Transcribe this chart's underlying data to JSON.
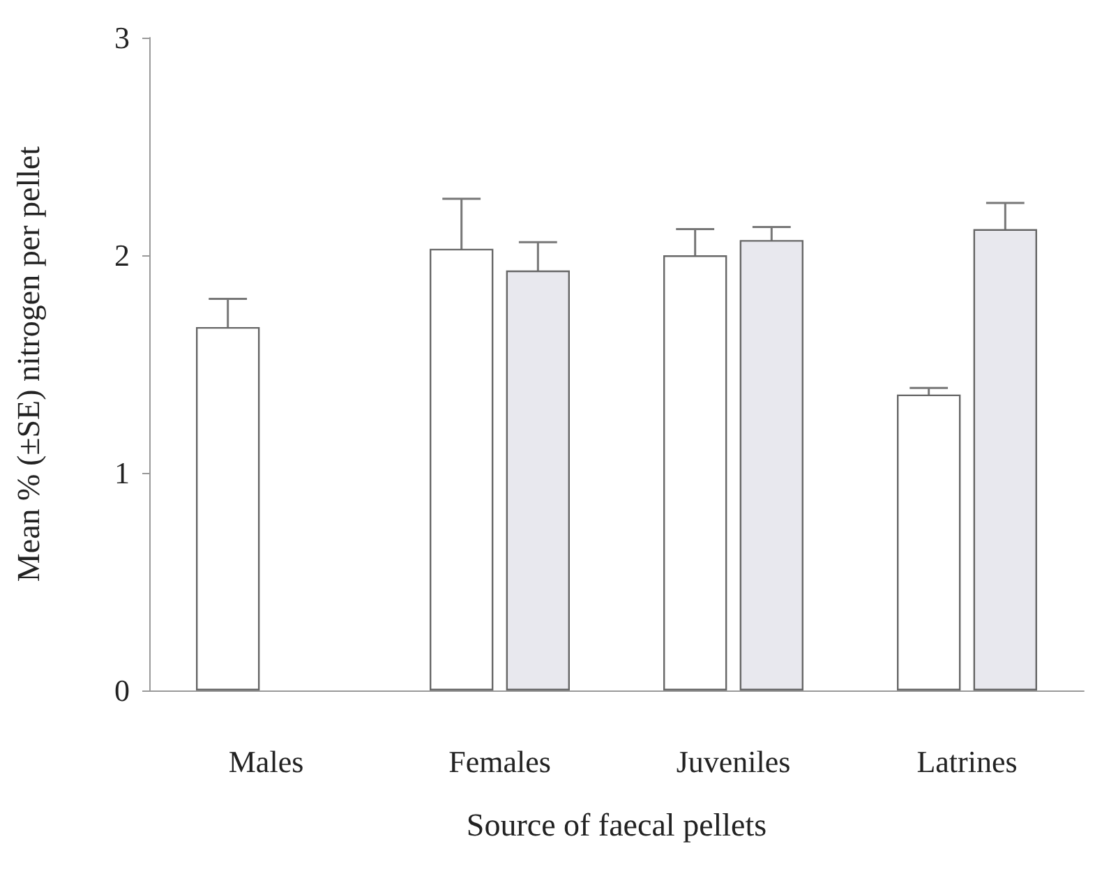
{
  "chart_data": {
    "type": "bar",
    "xlabel": "Source of faecal pellets",
    "ylabel": "Mean % (±SE) nitrogen per pellet",
    "categories": [
      "Males",
      "Females",
      "Juveniles",
      "Latrines"
    ],
    "series": [
      {
        "color": "#ffffff",
        "values": [
          1.67,
          2.03,
          2.0,
          1.36
        ],
        "errors": [
          0.13,
          0.23,
          0.12,
          0.03
        ]
      },
      {
        "color": "#e8e8ee",
        "values": [
          null,
          1.93,
          2.07,
          2.12
        ],
        "errors": [
          null,
          0.13,
          0.06,
          0.12
        ]
      }
    ],
    "ylim": [
      0,
      3
    ],
    "yticks": [
      0,
      1,
      2,
      3
    ],
    "grid": false
  }
}
